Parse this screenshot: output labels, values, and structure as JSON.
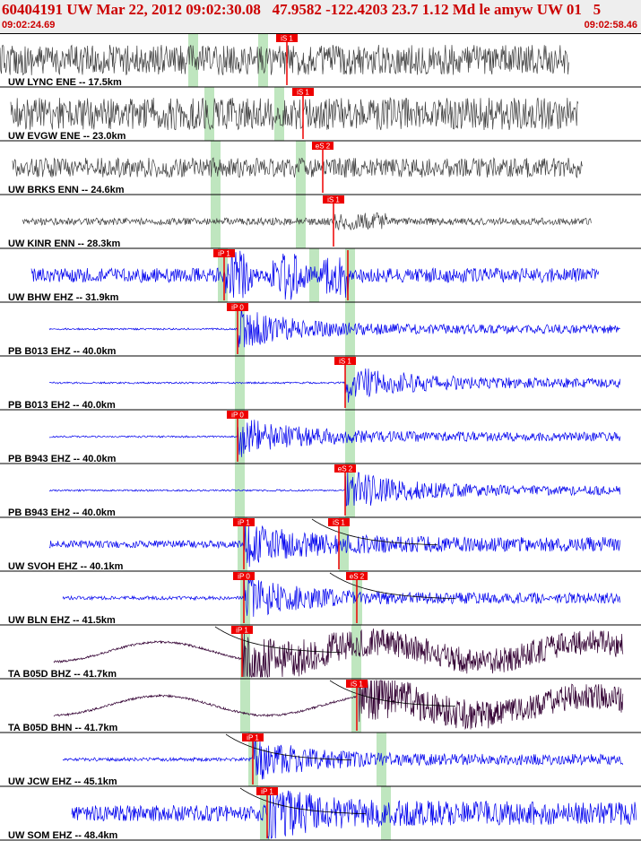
{
  "header": {
    "title": "60404191 UW Mar 22, 2012 09:02:30.08   47.9582 -122.4203 23.7 1.12 Md le amyw UW 01   5",
    "time_start": "09:02:24.69",
    "time_end": "09:02:58.46"
  },
  "colors": {
    "header_bg": "#eeeeee",
    "header_text": "#cc0000",
    "trace_horizontal": "#404040",
    "trace_vertical": "#0000ee",
    "trace_broadband": "#330033",
    "pick": "#ee0000",
    "window": "#bfe6bf"
  },
  "traces": [
    {
      "label": "UW LYNC ENE -- 17.5km",
      "type": "h",
      "start": 0,
      "end": 635,
      "amp": 17,
      "env": "flat",
      "windows": [
        210,
        288
      ],
      "picks": [
        {
          "label": "iS 1",
          "x": 320
        }
      ]
    },
    {
      "label": "UW EVGW ENE -- 23.0km",
      "type": "h",
      "start": 12,
      "end": 645,
      "amp": 18,
      "env": "flat",
      "windows": [
        228,
        306
      ],
      "picks": [
        {
          "label": "iS 1",
          "x": 338
        }
      ]
    },
    {
      "label": "UW BRKS ENN -- 24.6km",
      "type": "h",
      "start": 14,
      "end": 650,
      "amp": 11,
      "env": "flat",
      "windows": [
        235,
        330
      ],
      "picks": [
        {
          "label": "eS 2",
          "x": 360
        }
      ]
    },
    {
      "label": "UW KINR ENN -- 28.3km",
      "type": "h",
      "start": 25,
      "end": 660,
      "amp": 4,
      "env": "pulse",
      "onset": 372,
      "windows": [
        235,
        330
      ],
      "picks": [
        {
          "label": "iS 1",
          "x": 372
        }
      ]
    },
    {
      "label": "UW BHW EHZ -- 31.9km",
      "type": "v",
      "start": 35,
      "end": 668,
      "amp": 8,
      "env": "burst",
      "onset": 250,
      "windows": [
        243,
        345,
        385
      ],
      "picks": [
        {
          "label": "iP 1",
          "x": 250
        },
        {
          "label": "",
          "x": 388
        }
      ]
    },
    {
      "label": "PB B013 EHZ -- 40.0km",
      "type": "v",
      "start": 55,
      "end": 692,
      "amp": 1,
      "env": "quake",
      "onset": 265,
      "windows": [
        262,
        385
      ],
      "picks": [
        {
          "label": "iP 0",
          "x": 265
        }
      ]
    },
    {
      "label": "PB B013 EH2 -- 40.0km",
      "type": "v",
      "start": 55,
      "end": 692,
      "amp": 1,
      "env": "quake",
      "onset": 385,
      "windows": [
        262,
        385
      ],
      "picks": [
        {
          "label": "iS 1",
          "x": 385
        }
      ]
    },
    {
      "label": "PB B943 EHZ -- 40.0km",
      "type": "v",
      "start": 55,
      "end": 692,
      "amp": 1,
      "env": "quake",
      "onset": 265,
      "windows": [
        262,
        385
      ],
      "picks": [
        {
          "label": "iP 0",
          "x": 265
        }
      ]
    },
    {
      "label": "PB B943 EH2 -- 40.0km",
      "type": "v",
      "start": 55,
      "end": 692,
      "amp": 1,
      "env": "quake",
      "onset": 385,
      "windows": [
        262,
        385
      ],
      "picks": [
        {
          "label": "eS 2",
          "x": 385
        }
      ]
    },
    {
      "label": "UW SVOH EHZ -- 40.1km",
      "type": "v",
      "start": 55,
      "end": 692,
      "amp": 4,
      "env": "quake",
      "onset": 272,
      "windows": [
        265,
        378
      ],
      "picks": [
        {
          "label": "iP 1",
          "x": 272
        },
        {
          "label": "iS 1",
          "x": 378
        }
      ]
    },
    {
      "label": "UW BLN EHZ -- 41.5km",
      "type": "v",
      "start": 70,
      "end": 692,
      "amp": 2,
      "env": "quake",
      "onset": 272,
      "windows": [
        268,
        393
      ],
      "picks": [
        {
          "label": "iP 0",
          "x": 272
        },
        {
          "label": "eS 2",
          "x": 398
        }
      ]
    },
    {
      "label": "TA B05D BHZ -- 41.7km",
      "type": "b",
      "start": 60,
      "end": 695,
      "amp": 10,
      "env": "quake",
      "onset": 270,
      "windows": [
        268,
        392
      ],
      "picks": [
        {
          "label": "iP 1",
          "x": 270
        }
      ]
    },
    {
      "label": "TA B05D BHN -- 41.7km",
      "type": "b",
      "start": 60,
      "end": 695,
      "amp": 10,
      "env": "quake",
      "onset": 398,
      "windows": [
        268,
        392
      ],
      "picks": [
        {
          "label": "iS 1",
          "x": 398
        }
      ]
    },
    {
      "label": "UW JCW EHZ -- 45.1km",
      "type": "v",
      "start": 70,
      "end": 695,
      "amp": 2,
      "env": "quake",
      "onset": 282,
      "windows": [
        277,
        420
      ],
      "picks": [
        {
          "label": "iP 1",
          "x": 282
        }
      ]
    },
    {
      "label": "UW SOM EHZ -- 48.4km",
      "type": "v",
      "start": 80,
      "end": 710,
      "amp": 9,
      "env": "quake",
      "onset": 298,
      "windows": [
        290,
        425
      ],
      "picks": [
        {
          "label": "iP 1",
          "x": 298
        }
      ]
    }
  ]
}
